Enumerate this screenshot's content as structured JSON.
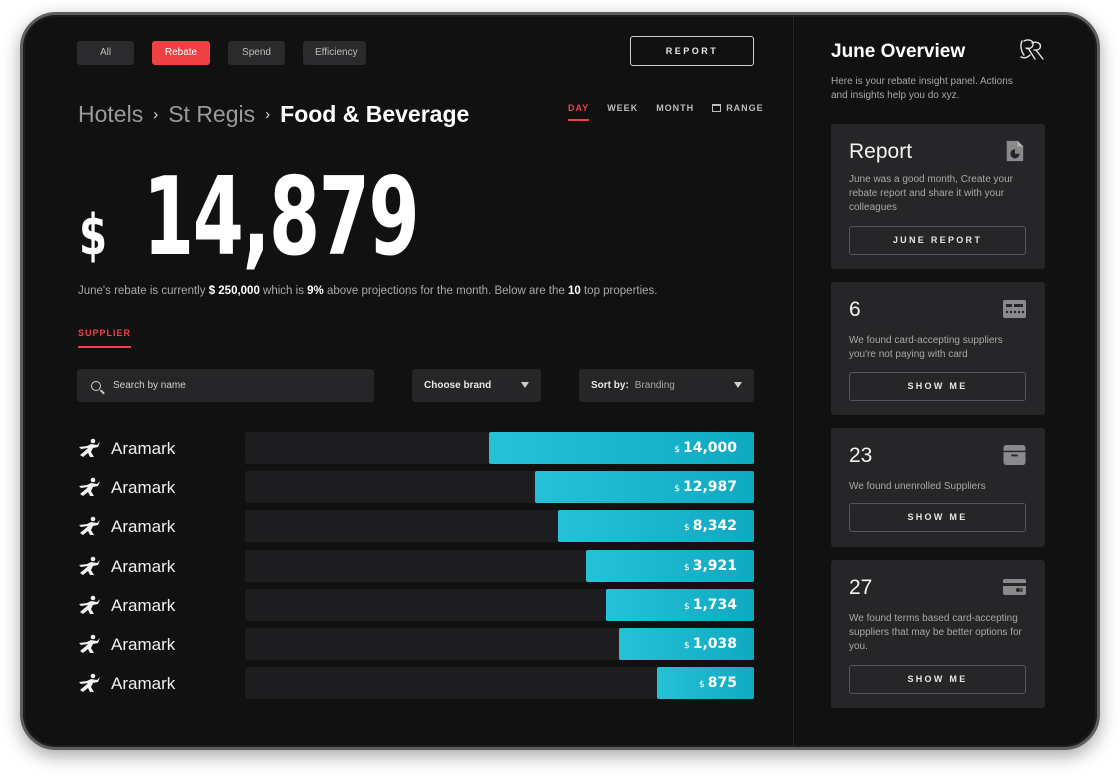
{
  "filters": [
    {
      "label": "All",
      "active": false
    },
    {
      "label": "Rebate",
      "active": true
    },
    {
      "label": "Spend",
      "active": false
    },
    {
      "label": "Efficiency",
      "active": false
    }
  ],
  "header": {
    "report_label": "REPORT"
  },
  "breadcrumb": {
    "level1": "Hotels",
    "level2": "St Regis",
    "current": "Food & Beverage",
    "separator": "›"
  },
  "ranges": [
    {
      "label": "DAY",
      "active": true
    },
    {
      "label": "WEEK",
      "active": false
    },
    {
      "label": "MONTH",
      "active": false
    },
    {
      "label": "RANGE",
      "active": false
    }
  ],
  "summary": {
    "currency": "$",
    "amount": "14,879",
    "desc_prefix": "June's rebate is currently ",
    "desc_total": "$ 250,000",
    "desc_mid": " which is ",
    "desc_pct": "9%",
    "desc_mid2": " above projections for the month. Below are the ",
    "desc_count": "10",
    "desc_suffix": " top properties."
  },
  "tabs": {
    "supplier": "SUPPLIER"
  },
  "search": {
    "placeholder": "Search by name"
  },
  "brand_dropdown": {
    "label": "Choose brand"
  },
  "sort_dropdown": {
    "label": "Sort by:",
    "value": "Branding"
  },
  "suppliers": [
    {
      "name": "Aramark",
      "value": 14000,
      "display": "14,000"
    },
    {
      "name": "Aramark",
      "value": 12987,
      "display": "12,987"
    },
    {
      "name": "Aramark",
      "value": 8342,
      "display": "8,342"
    },
    {
      "name": "Aramark",
      "value": 3921,
      "display": "3,921"
    },
    {
      "name": "Aramark",
      "value": 1734,
      "display": "1,734"
    },
    {
      "name": "Aramark",
      "value": 1038,
      "display": "1,038"
    },
    {
      "name": "Aramark",
      "value": 875,
      "display": "875"
    }
  ],
  "bar_fill_fraction": [
    0.52,
    0.43,
    0.385,
    0.33,
    0.29,
    0.265,
    0.19
  ],
  "overview": {
    "title": "June Overview",
    "subtitle": "Here is your rebate insight panel. Actions and insights help you do xyz.",
    "cards": [
      {
        "big": "Report",
        "text": "June was a good month, Create your rebate report and share it with your colleagues",
        "button": "JUNE REPORT",
        "icon": "pie-report-icon"
      },
      {
        "big": "6",
        "text": "We found card-accepting suppliers you're not paying with card",
        "button": "SHOW ME",
        "icon": "card-terminal-icon"
      },
      {
        "big": "23",
        "text": "We found unenrolled Suppliers",
        "button": "SHOW ME",
        "icon": "archive-box-icon"
      },
      {
        "big": "27",
        "text": "We found terms based card-accepting suppliers that may be better options for you.",
        "button": "SHOW ME",
        "icon": "credit-card-icon"
      }
    ]
  },
  "colors": {
    "accent": "#ef4045",
    "bar": "#1ab4cb",
    "background": "#111112",
    "panel": "#262628"
  }
}
